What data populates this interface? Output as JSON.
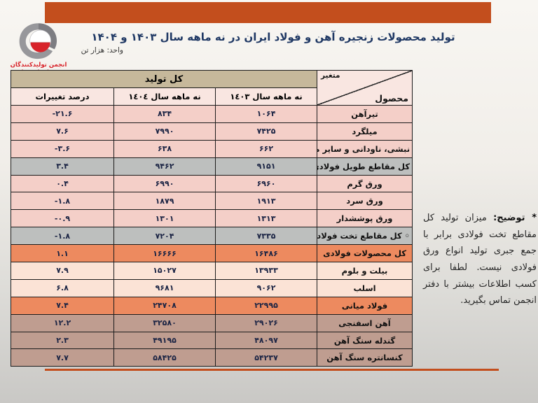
{
  "colors": {
    "accent_orange": "#c34e1d",
    "title_navy": "#1f3864",
    "logo_red": "#d8232a",
    "row_pink": "#f4cfc8",
    "row_gray": "#bdbfbe",
    "row_orange": "#ed8a5f",
    "row_peach": "#fbe3d6",
    "row_brown": "#bf9d90",
    "header_tan": "#c6b89b",
    "header_lightpink": "#f9e6e1"
  },
  "brand": {
    "logo_line1": "انجمن تولیدکنندگان",
    "logo_line2": "فــولاد ایــــران"
  },
  "header": {
    "title": "تولید محصولات زنجیره آهن و فولاد ایران در نه ماهه سال ۱۴۰۳ و ۱۴۰۴",
    "unit_label": "واحد: هزار تن"
  },
  "table": {
    "total_header": "کل تولید",
    "diagonal": {
      "top": "متغیر",
      "bottom": "محصول"
    },
    "columns": {
      "y1403": "نه ماهه سال ١٤٠٣",
      "y1404": "نه ماهه سال ١٤٠٤",
      "percent": "درصد تغییرات"
    },
    "rows": [
      {
        "product": "تیرآهن",
        "v1403": "۱۰۶۴",
        "v1404": "۸۳۴",
        "pct": "-۲۱.۶",
        "style": "pink"
      },
      {
        "product": "میلگرد",
        "v1403": "۷۴۲۵",
        "v1404": "۷۹۹۰",
        "pct": "۷.۶",
        "style": "pink"
      },
      {
        "product": "نبشی، ناودانی و سایر مقاطع",
        "v1403": "۶۶۲",
        "v1404": "۶۳۸",
        "pct": "-۳.۶",
        "style": "pink"
      },
      {
        "product": "کل مقاطع طویل فولادی",
        "v1403": "۹۱۵۱",
        "v1404": "۹۴۶۲",
        "pct": "۳.۴",
        "style": "gray"
      },
      {
        "product": "ورق گرم",
        "v1403": "۶۹۶۰",
        "v1404": "۶۹۹۰",
        "pct": "۰.۴",
        "style": "pink"
      },
      {
        "product": "ورق سرد",
        "v1403": "۱۹۱۳",
        "v1404": "۱۸۷۹",
        "pct": "-۱.۸",
        "style": "pink"
      },
      {
        "product": "ورق پوششدار",
        "v1403": "۱۳۱۳",
        "v1404": "۱۳۰۱",
        "pct": "-۰.۹",
        "style": "pink"
      },
      {
        "product": "◦ کل مقاطع تخت فولادی",
        "v1403": "۷۳۳۵",
        "v1404": "۷۲۰۴",
        "pct": "-۱.۸",
        "style": "gray"
      },
      {
        "product": "کل محصولات فولادی",
        "v1403": "۱۶۴۸۶",
        "v1404": "۱۶۶۶۶",
        "pct": "۱.۱",
        "style": "orange"
      },
      {
        "product": "بیلت و بلوم",
        "v1403": "۱۳۹۳۳",
        "v1404": "۱۵۰۲۷",
        "pct": "۷.۹",
        "style": "peach"
      },
      {
        "product": "اسلب",
        "v1403": "۹۰۶۲",
        "v1404": "۹۶۸۱",
        "pct": "۶.۸",
        "style": "peach"
      },
      {
        "product": "فولاد میانی",
        "v1403": "۲۲۹۹۵",
        "v1404": "۲۴۷۰۸",
        "pct": "۷.۴",
        "style": "orange"
      },
      {
        "product": "آهن اسفنجی",
        "v1403": "۲۹۰۲۶",
        "v1404": "۳۲۵۸۰",
        "pct": "۱۲.۲",
        "style": "brown"
      },
      {
        "product": "گندله سنگ آهن",
        "v1403": "۴۸۰۹۷",
        "v1404": "۴۹۱۹۵",
        "pct": "۲.۳",
        "style": "brown"
      },
      {
        "product": "کنسانتره سنگ آهن",
        "v1403": "۵۴۲۳۷",
        "v1404": "۵۸۴۲۵",
        "pct": "۷.۷",
        "style": "brown"
      }
    ]
  },
  "note": {
    "lead": "* توضیح:",
    "body": "میزان تولید کل مقاطع تخت فولادی برابر با جمع جبری تولید انواع ورق فولادی نیست. لطفا برای کسب اطلاعات بیشتر با دفتر انجمن تماس بگیرید."
  }
}
